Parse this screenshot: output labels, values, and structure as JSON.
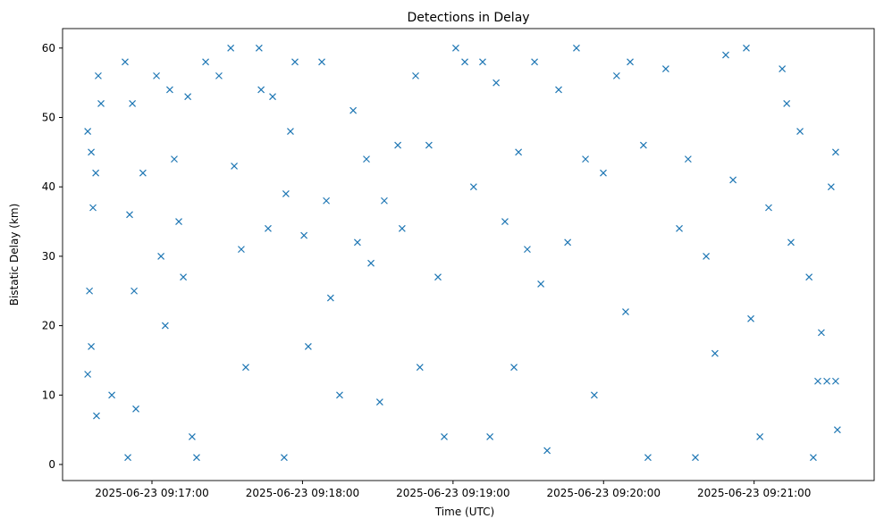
{
  "chart_data": {
    "type": "scatter",
    "title": "Detections in Delay",
    "xlabel": "Time (UTC)",
    "ylabel": "Bistatic Delay (km)",
    "x_units": "seconds after 2025-06-23 09:16:00",
    "xlim": [
      24,
      336
    ],
    "ylim": [
      -2.5,
      62.8
    ],
    "yticks": [
      0,
      10,
      20,
      30,
      40,
      50,
      60
    ],
    "xticks": [
      {
        "value": 60,
        "label": "2025-06-23 09:17:00"
      },
      {
        "value": 120,
        "label": "2025-06-23 09:18:00"
      },
      {
        "value": 180,
        "label": "2025-06-23 09:19:00"
      },
      {
        "value": 240,
        "label": "2025-06-23 09:20:00"
      },
      {
        "value": 300,
        "label": "2025-06-23 09:21:00"
      }
    ],
    "marker": "x",
    "color": "#1f77b4",
    "grid": false,
    "points": [
      [
        34.4,
        48
      ],
      [
        35.8,
        45
      ],
      [
        36.5,
        37
      ],
      [
        37.6,
        42
      ],
      [
        38.6,
        56
      ],
      [
        39.7,
        52
      ],
      [
        35.1,
        25
      ],
      [
        35.8,
        17
      ],
      [
        34.4,
        13
      ],
      [
        37.9,
        7
      ],
      [
        44,
        10
      ],
      [
        49.3,
        58
      ],
      [
        52.2,
        52
      ],
      [
        51.1,
        36
      ],
      [
        52.9,
        25
      ],
      [
        53.6,
        8
      ],
      [
        50.4,
        1
      ],
      [
        56.4,
        42
      ],
      [
        61.8,
        56
      ],
      [
        63.6,
        30
      ],
      [
        65.3,
        20
      ],
      [
        67.1,
        54
      ],
      [
        68.9,
        44
      ],
      [
        70.7,
        35
      ],
      [
        72.5,
        27
      ],
      [
        74.3,
        53
      ],
      [
        76,
        4
      ],
      [
        77.8,
        1
      ],
      [
        81.4,
        58
      ],
      [
        86.7,
        56
      ],
      [
        91.4,
        60
      ],
      [
        92.8,
        43
      ],
      [
        95.6,
        31
      ],
      [
        97.4,
        14
      ],
      [
        102.7,
        60
      ],
      [
        103.5,
        54
      ],
      [
        106.3,
        34
      ],
      [
        108.1,
        53
      ],
      [
        112.7,
        1
      ],
      [
        113.4,
        39
      ],
      [
        115.2,
        48
      ],
      [
        117,
        58
      ],
      [
        120.6,
        33
      ],
      [
        122.3,
        17
      ],
      [
        127.7,
        58
      ],
      [
        129.5,
        38
      ],
      [
        131.2,
        24
      ],
      [
        134.8,
        10
      ],
      [
        140.2,
        51
      ],
      [
        141.9,
        32
      ],
      [
        145.5,
        44
      ],
      [
        147.3,
        29
      ],
      [
        150.8,
        9
      ],
      [
        152.6,
        38
      ],
      [
        158,
        46
      ],
      [
        159.7,
        34
      ],
      [
        165.1,
        56
      ],
      [
        166.8,
        14
      ],
      [
        170.4,
        46
      ],
      [
        174,
        27
      ],
      [
        176.5,
        4
      ],
      [
        181.1,
        60
      ],
      [
        184.7,
        58
      ],
      [
        188.2,
        40
      ],
      [
        191.8,
        58
      ],
      [
        194.7,
        4
      ],
      [
        197.2,
        55
      ],
      [
        200.7,
        35
      ],
      [
        204.3,
        14
      ],
      [
        206.1,
        45
      ],
      [
        209.6,
        31
      ],
      [
        212.5,
        58
      ],
      [
        215,
        26
      ],
      [
        217.5,
        2
      ],
      [
        222.1,
        54
      ],
      [
        225.7,
        32
      ],
      [
        229.2,
        60
      ],
      [
        232.8,
        44
      ],
      [
        236.3,
        10
      ],
      [
        239.9,
        42
      ],
      [
        245.2,
        56
      ],
      [
        248.8,
        22
      ],
      [
        250.6,
        58
      ],
      [
        255.9,
        46
      ],
      [
        257.7,
        1
      ],
      [
        264.8,
        57
      ],
      [
        270.2,
        34
      ],
      [
        273.7,
        44
      ],
      [
        276.6,
        1
      ],
      [
        280.9,
        30
      ],
      [
        284.4,
        16
      ],
      [
        288.7,
        59
      ],
      [
        291.6,
        41
      ],
      [
        296.9,
        60
      ],
      [
        298.7,
        21
      ],
      [
        302.3,
        4
      ],
      [
        305.8,
        37
      ],
      [
        311.2,
        57
      ],
      [
        313,
        52
      ],
      [
        314.7,
        32
      ],
      [
        318.3,
        48
      ],
      [
        321.9,
        27
      ],
      [
        323.6,
        1
      ],
      [
        325.4,
        12
      ],
      [
        329,
        12
      ],
      [
        330.7,
        40
      ],
      [
        332.5,
        45
      ],
      [
        333.2,
        5
      ],
      [
        332.5,
        12
      ],
      [
        326.8,
        19
      ]
    ]
  }
}
